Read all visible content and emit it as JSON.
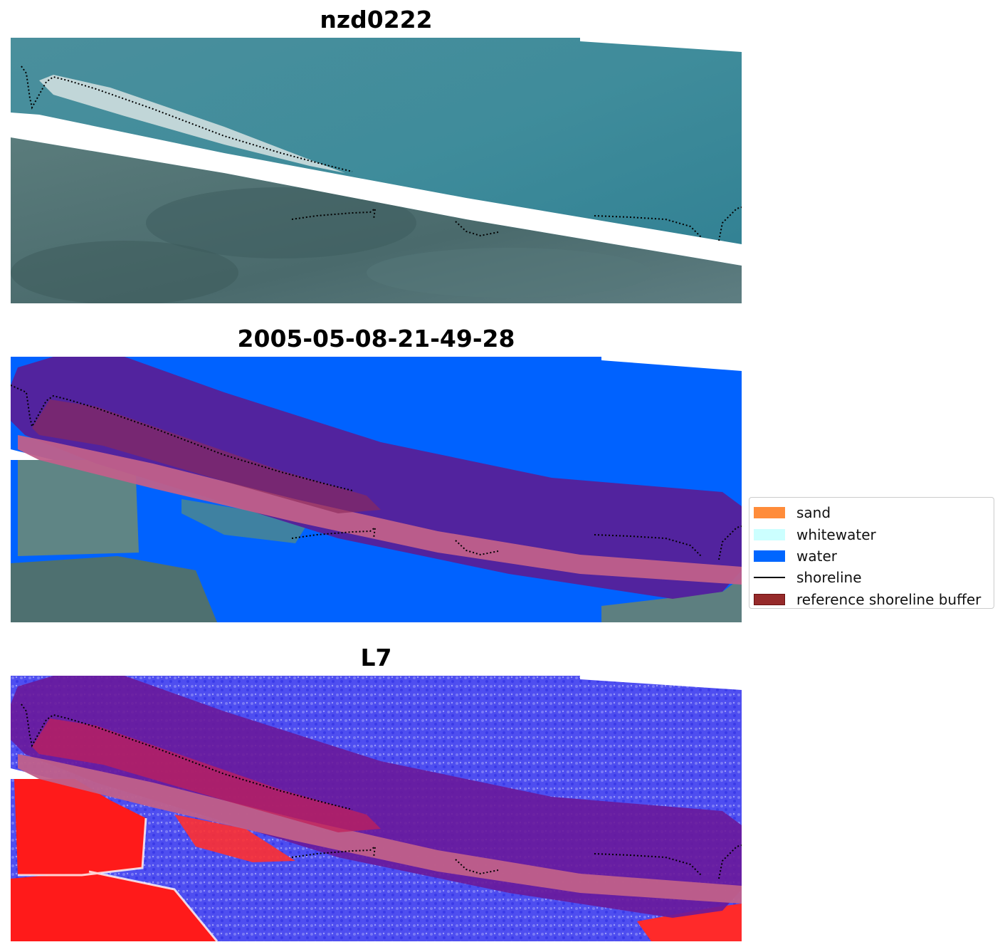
{
  "panels": [
    {
      "title": "nzd0222",
      "kind": "rgb"
    },
    {
      "title": "2005-05-08-21-49-28",
      "kind": "classified"
    },
    {
      "title": "L7",
      "kind": "index"
    }
  ],
  "legend": {
    "items": [
      {
        "label": "sand",
        "type": "patch",
        "color": "#ff8c3a"
      },
      {
        "label": "whitewater",
        "type": "patch",
        "color": "#ccffff"
      },
      {
        "label": "water",
        "type": "patch",
        "color": "#0066ff"
      },
      {
        "label": "shoreline",
        "type": "line",
        "color": "#000000"
      },
      {
        "label": "reference shoreline buffer",
        "type": "patch",
        "color": "#962a2a"
      }
    ]
  },
  "colors": {
    "sea_rgb": "#3e8a9a",
    "land_rgb": "#4d6b6b",
    "water_class": "#0062ff",
    "buffer_purple": "#55209a",
    "buffer_pink": "#c0608a",
    "index_blue": "#5252f0",
    "index_red": "#ff1a1a"
  }
}
